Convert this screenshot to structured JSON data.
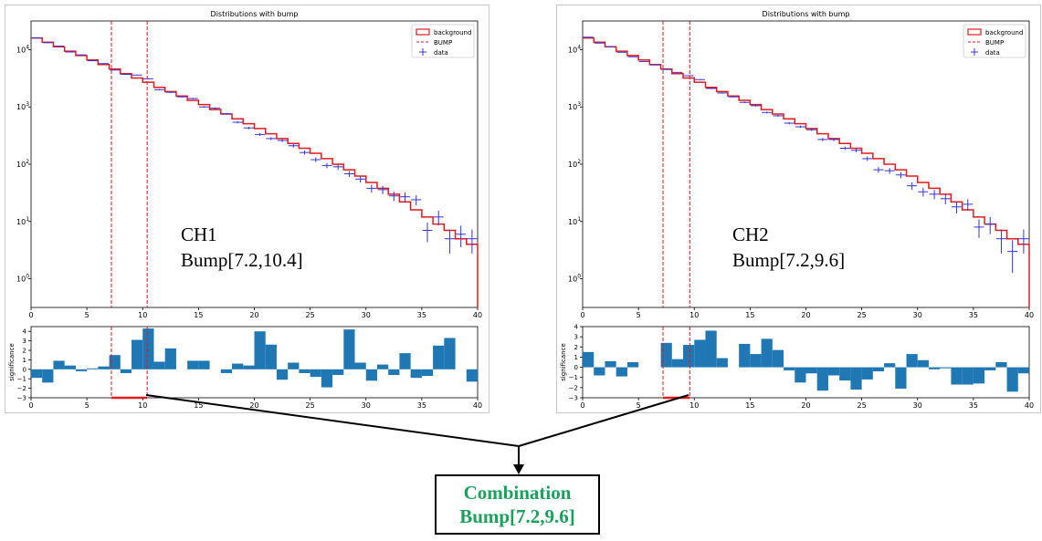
{
  "chart_data": [
    {
      "type": "histogram",
      "title": "Distributions with bump",
      "channel_label": "CH1",
      "bump_label": "Bump[7.2,10.4]",
      "main": {
        "yscale": "log",
        "xlim": [
          0,
          40
        ],
        "ylim_log10": [
          -0.5,
          4.5
        ],
        "x_ticks": [
          "0",
          "5",
          "10",
          "15",
          "20",
          "25",
          "30",
          "35",
          "40"
        ],
        "y_ticks": [
          {
            "base": "10",
            "exp": "0",
            "value": 1
          },
          {
            "base": "10",
            "exp": "1",
            "value": 10
          },
          {
            "base": "10",
            "exp": "2",
            "value": 100
          },
          {
            "base": "10",
            "exp": "3",
            "value": 1000
          },
          {
            "base": "10",
            "exp": "4",
            "value": 10000
          }
        ],
        "bin_edges_step": 1,
        "background": [
          16000,
          13500,
          11200,
          9400,
          7900,
          6600,
          5500,
          4600,
          3800,
          3200,
          2700,
          2200,
          1850,
          1550,
          1300,
          1100,
          900,
          750,
          620,
          510,
          420,
          340,
          280,
          230,
          190,
          155,
          125,
          100,
          80,
          62,
          48,
          38,
          30,
          22,
          16,
          12,
          9,
          7,
          5,
          4
        ],
        "data": [
          16000,
          13200,
          11500,
          9100,
          8100,
          6400,
          5700,
          4400,
          3700,
          3600,
          3100,
          2000,
          1800,
          1500,
          1400,
          1000,
          950,
          760,
          540,
          430,
          330,
          280,
          260,
          210,
          160,
          120,
          95,
          90,
          68,
          55,
          38,
          36,
          28,
          27,
          24,
          7,
          12,
          5,
          6,
          5
        ],
        "legend": {
          "location": "top-right",
          "entries": [
            "background",
            "BUMP",
            "data"
          ]
        }
      },
      "significance": {
        "ylabel": "significance",
        "xlim": [
          0,
          40
        ],
        "ylim": [
          -3,
          4.5
        ],
        "x_ticks": [
          "0",
          "5",
          "10",
          "15",
          "20",
          "25",
          "30",
          "35",
          "40"
        ],
        "y_ticks": [
          "4",
          "3",
          "2",
          "1",
          "0",
          "−1",
          "−2",
          "−3"
        ],
        "values": [
          -0.9,
          -1.4,
          0.9,
          0.4,
          -0.2,
          0.1,
          0.3,
          1.5,
          -0.4,
          3.1,
          4.3,
          0.8,
          2.2,
          0,
          0.9,
          0.9,
          0,
          -0.4,
          0.6,
          0.4,
          4.0,
          2.6,
          -1.1,
          0.7,
          -0.4,
          -0.8,
          -1.9,
          -0.6,
          4.2,
          0.7,
          -1.2,
          0.5,
          -0.6,
          1.7,
          -0.9,
          -0.7,
          2.5,
          3.3,
          0,
          -1.3
        ],
        "bump_range": [
          7.2,
          10.4
        ]
      }
    },
    {
      "type": "histogram",
      "title": "Distributions with bump",
      "channel_label": "CH2",
      "bump_label": "Bump[7.2,9.6]",
      "main": {
        "yscale": "log",
        "xlim": [
          0,
          40
        ],
        "ylim_log10": [
          -0.5,
          4.5
        ],
        "x_ticks": [
          "0",
          "5",
          "10",
          "15",
          "20",
          "25",
          "30",
          "35",
          "40"
        ],
        "y_ticks": [
          {
            "base": "10",
            "exp": "0",
            "value": 1
          },
          {
            "base": "10",
            "exp": "1",
            "value": 10
          },
          {
            "base": "10",
            "exp": "2",
            "value": 100
          },
          {
            "base": "10",
            "exp": "3",
            "value": 1000
          },
          {
            "base": "10",
            "exp": "4",
            "value": 10000
          }
        ],
        "bin_edges_step": 1,
        "background": [
          16000,
          13500,
          11200,
          9400,
          7900,
          6600,
          5500,
          4600,
          3800,
          3200,
          2700,
          2200,
          1850,
          1550,
          1300,
          1100,
          900,
          750,
          620,
          510,
          420,
          340,
          280,
          230,
          190,
          155,
          125,
          100,
          80,
          62,
          48,
          38,
          30,
          22,
          16,
          12,
          9,
          7,
          5,
          4
        ],
        "data": [
          16500,
          13000,
          11300,
          9000,
          7500,
          6200,
          5400,
          4500,
          4000,
          3500,
          3000,
          2100,
          1750,
          1500,
          1200,
          1050,
          800,
          700,
          520,
          450,
          400,
          270,
          270,
          190,
          175,
          125,
          80,
          77,
          65,
          42,
          33,
          30,
          25,
          18,
          20,
          8,
          9,
          5,
          3,
          5
        ],
        "legend": {
          "location": "top-right",
          "entries": [
            "background",
            "BUMP",
            "data"
          ]
        }
      },
      "significance": {
        "ylabel": "significance",
        "xlim": [
          0,
          40
        ],
        "ylim": [
          -3,
          4
        ],
        "x_ticks": [
          "0",
          "5",
          "10",
          "15",
          "20",
          "25",
          "30",
          "35",
          "40"
        ],
        "y_ticks": [
          "4",
          "3",
          "2",
          "1",
          "0",
          "−1",
          "−2",
          "−3"
        ],
        "values": [
          1.5,
          -0.8,
          0.6,
          -0.9,
          0.5,
          0,
          0,
          2.4,
          0.8,
          2.2,
          2.7,
          3.6,
          0.9,
          0,
          2.3,
          1.3,
          2.8,
          1.7,
          -0.3,
          -1.5,
          -0.6,
          -2.3,
          -0.8,
          -1.3,
          -2.2,
          -1.2,
          -0.4,
          0.4,
          -2.1,
          1.3,
          0.7,
          -0.2,
          -0.1,
          -1.7,
          -1.7,
          -1.6,
          -0.3,
          0.5,
          -2.4,
          -0.6
        ],
        "bump_range": [
          7.2,
          9.6
        ]
      }
    }
  ],
  "combination": {
    "line1": "Combination",
    "line2": "Bump[7.2,9.6]"
  },
  "colors": {
    "background_line": "#e41a1c",
    "bump_line": "#e41a1c",
    "data_marker": "#3333dd",
    "significance_bar": "#1f77b4",
    "combination_text": "#1aa15c"
  }
}
